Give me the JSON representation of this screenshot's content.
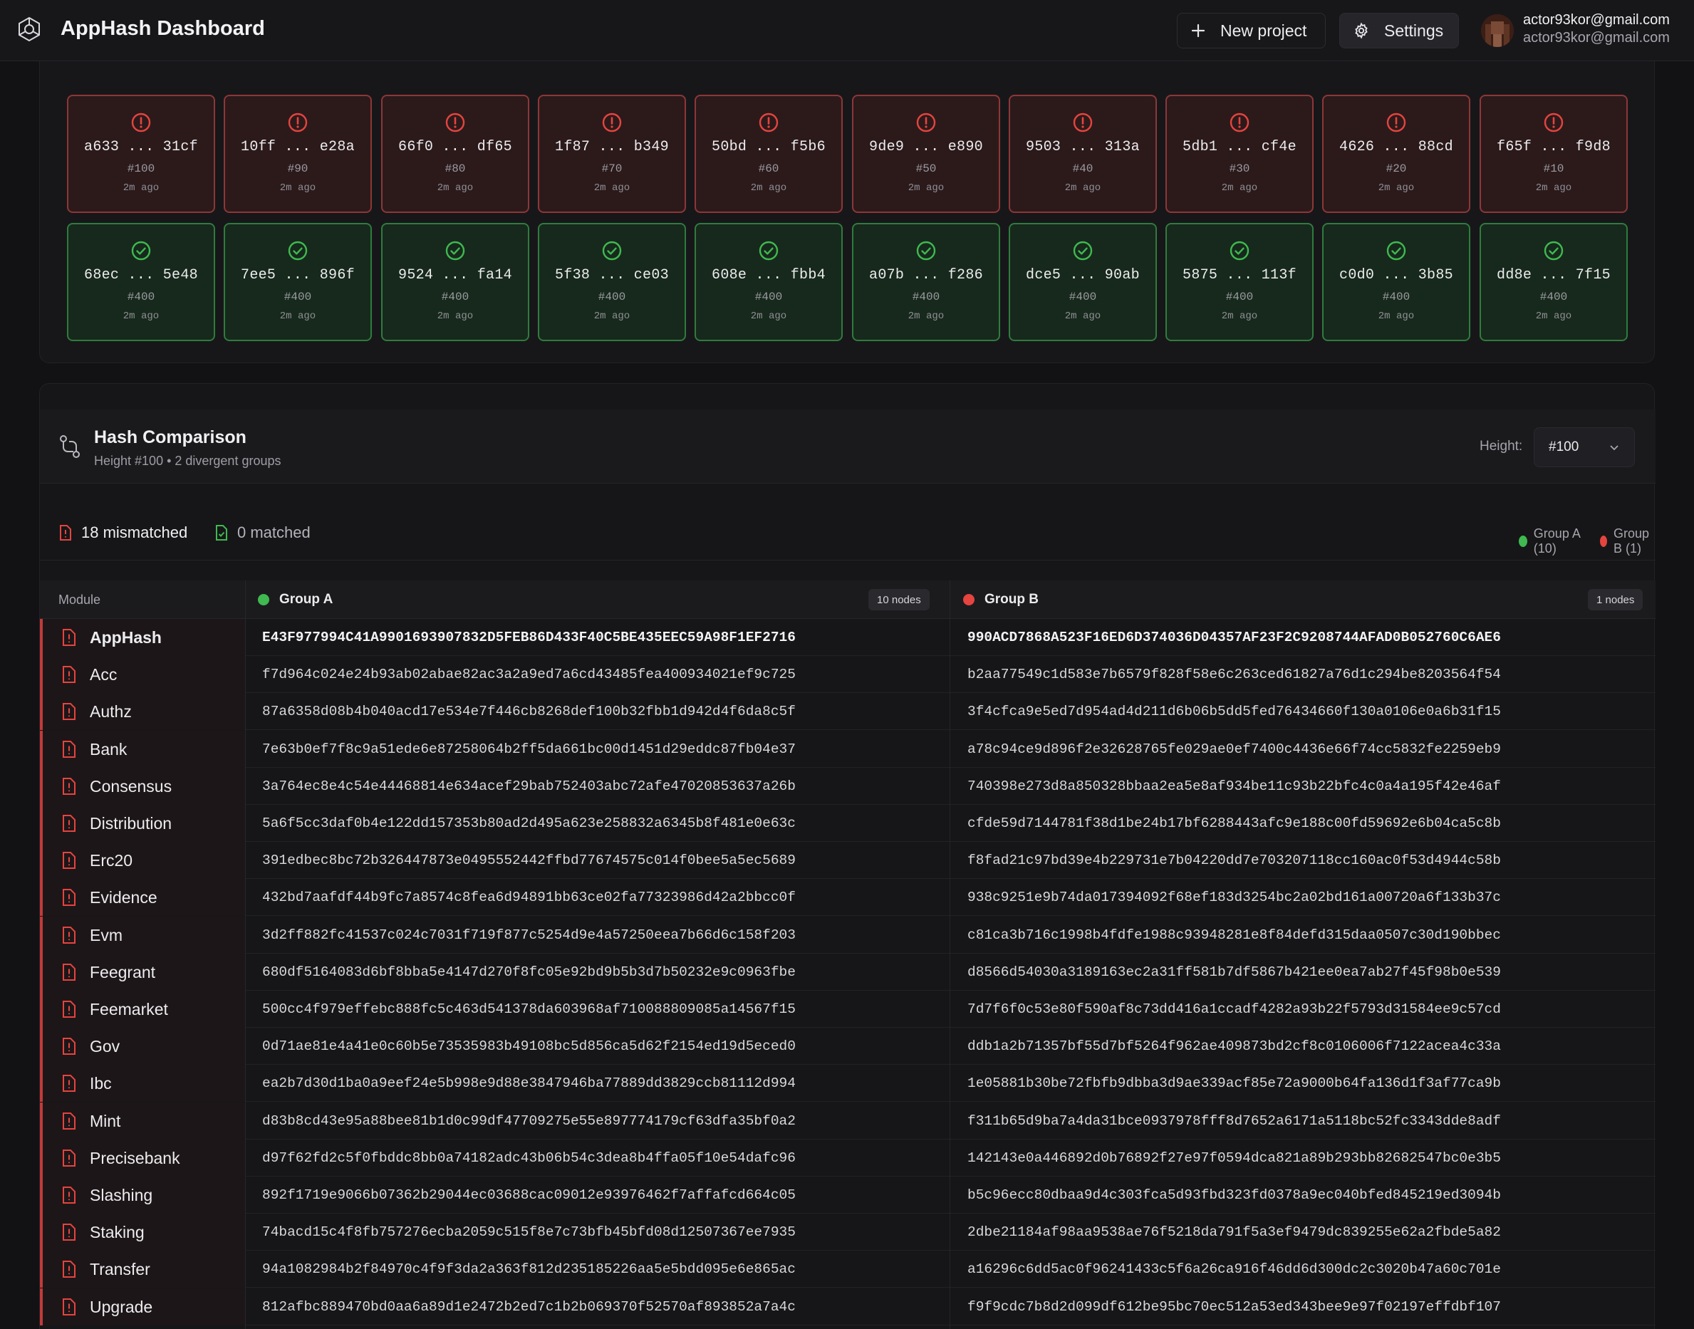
{
  "header": {
    "title": "AppHash Dashboard",
    "new_project_label": "New project",
    "settings_label": "Settings",
    "user_email": "actor93kor@gmail.com",
    "user_email_secondary": "actor93kor@gmail.com"
  },
  "blocks": {
    "failed": [
      {
        "hash": "a633 ... 31cf",
        "height": "#100",
        "age": "2m ago"
      },
      {
        "hash": "10ff ... e28a",
        "height": "#90",
        "age": "2m ago"
      },
      {
        "hash": "66f0 ... df65",
        "height": "#80",
        "age": "2m ago"
      },
      {
        "hash": "1f87 ... b349",
        "height": "#70",
        "age": "2m ago"
      },
      {
        "hash": "50bd ... f5b6",
        "height": "#60",
        "age": "2m ago"
      },
      {
        "hash": "9de9 ... e890",
        "height": "#50",
        "age": "2m ago"
      },
      {
        "hash": "9503 ... 313a",
        "height": "#40",
        "age": "2m ago"
      },
      {
        "hash": "5db1 ... cf4e",
        "height": "#30",
        "age": "2m ago"
      },
      {
        "hash": "4626 ... 88cd",
        "height": "#20",
        "age": "2m ago"
      },
      {
        "hash": "f65f ... f9d8",
        "height": "#10",
        "age": "2m ago"
      }
    ],
    "passed": [
      {
        "hash": "68ec ... 5e48",
        "height": "#400",
        "age": "2m ago"
      },
      {
        "hash": "7ee5 ... 896f",
        "height": "#400",
        "age": "2m ago"
      },
      {
        "hash": "9524 ... fa14",
        "height": "#400",
        "age": "2m ago"
      },
      {
        "hash": "5f38 ... ce03",
        "height": "#400",
        "age": "2m ago"
      },
      {
        "hash": "608e ... fbb4",
        "height": "#400",
        "age": "2m ago"
      },
      {
        "hash": "a07b ... f286",
        "height": "#400",
        "age": "2m ago"
      },
      {
        "hash": "dce5 ... 90ab",
        "height": "#400",
        "age": "2m ago"
      },
      {
        "hash": "5875 ... 113f",
        "height": "#400",
        "age": "2m ago"
      },
      {
        "hash": "c0d0 ... 3b85",
        "height": "#400",
        "age": "2m ago"
      },
      {
        "hash": "dd8e ... 7f15",
        "height": "#400",
        "age": "2m ago"
      }
    ]
  },
  "comparison": {
    "title": "Hash Comparison",
    "subtitle": "Height #100 • 2 divergent groups",
    "height_label": "Height:",
    "height_value": "#100",
    "mismatched": "18 mismatched",
    "matched": "0 matched",
    "legend_a": "Group A (10)",
    "legend_b": "Group B (1)",
    "col_module": "Module",
    "col_a": "Group A",
    "col_b": "Group B",
    "badge_a": "10 nodes",
    "badge_b": "1 nodes",
    "colors": {
      "group_a": "#3fb950",
      "group_b": "#e5443f",
      "mismatch": "#c13a3a"
    },
    "rows": [
      {
        "module": "AppHash",
        "a": "E43F977994C41A9901693907832D5FEB86D433F40C5BE435EEC59A98F1EF2716",
        "b": "990ACD7868A523F16ED6D374036D04357AF23F2C9208744AFAD0B052760C6AE6"
      },
      {
        "module": "Acc",
        "a": "f7d964c024e24b93ab02abae82ac3a2a9ed7a6cd43485fea400934021ef9c725",
        "b": "b2aa77549c1d583e7b6579f828f58e6c263ced61827a76d1c294be8203564f54"
      },
      {
        "module": "Authz",
        "a": "87a6358d08b4b040acd17e534e7f446cb8268def100b32fbb1d942d4f6da8c5f",
        "b": "3f4cfca9e5ed7d954ad4d211d6b06b5dd5fed76434660f130a0106e0a6b31f15"
      },
      {
        "module": "Bank",
        "a": "7e63b0ef7f8c9a51ede6e87258064b2ff5da661bc00d1451d29eddc87fb04e37",
        "b": "a78c94ce9d896f2e32628765fe029ae0ef7400c4436e66f74cc5832fe2259eb9"
      },
      {
        "module": "Consensus",
        "a": "3a764ec8e4c54e44468814e634acef29bab752403abc72afe47020853637a26b",
        "b": "740398e273d8a850328bbaa2ea5e8af934be11c93b22bfc4c0a4a195f42e46af"
      },
      {
        "module": "Distribution",
        "a": "5a6f5cc3daf0b4e122dd157353b80ad2d495a623e258832a6345b8f481e0e63c",
        "b": "cfde59d7144781f38d1be24b17bf6288443afc9e188c00fd59692e6b04ca5c8b"
      },
      {
        "module": "Erc20",
        "a": "391edbec8bc72b326447873e0495552442ffbd77674575c014f0bee5a5ec5689",
        "b": "f8fad21c97bd39e4b229731e7b04220dd7e703207118cc160ac0f53d4944c58b"
      },
      {
        "module": "Evidence",
        "a": "432bd7aafdf44b9fc7a8574c8fea6d94891bb63ce02fa77323986d42a2bbcc0f",
        "b": "938c9251e9b74da017394092f68ef183d3254bc2a02bd161a00720a6f133b37c"
      },
      {
        "module": "Evm",
        "a": "3d2ff882fc41537c024c7031f719f877c5254d9e4a57250eea7b66d6c158f203",
        "b": "c81ca3b716c1998b4fdfe1988c93948281e8f84defd315daa0507c30d190bbec"
      },
      {
        "module": "Feegrant",
        "a": "680df5164083d6bf8bba5e4147d270f8fc05e92bd9b5b3d7b50232e9c0963fbe",
        "b": "d8566d54030a3189163ec2a31ff581b7df5867b421ee0ea7ab27f45f98b0e539"
      },
      {
        "module": "Feemarket",
        "a": "500cc4f979effebc888fc5c463d541378da603968af710088809085a14567f15",
        "b": "7d7f6f0c53e80f590af8c73dd416a1ccadf4282a93b22f5793d31584ee9c57cd"
      },
      {
        "module": "Gov",
        "a": "0d71ae81e4a41e0c60b5e73535983b49108bc5d856ca5d62f2154ed19d5eced0",
        "b": "ddb1a2b71357bf55d7bf5264f962ae409873bd2cf8c0106006f7122acea4c33a"
      },
      {
        "module": "Ibc",
        "a": "ea2b7d30d1ba0a9eef24e5b998e9d88e3847946ba77889dd3829ccb81112d994",
        "b": "1e05881b30be72fbfb9dbba3d9ae339acf85e72a9000b64fa136d1f3af77ca9b"
      },
      {
        "module": "Mint",
        "a": "d83b8cd43e95a88bee81b1d0c99df47709275e55e897774179cf63dfa35bf0a2",
        "b": "f311b65d9ba7a4da31bce0937978fff8d7652a6171a5118bc52fc3343dde8adf"
      },
      {
        "module": "Precisebank",
        "a": "d97f62fd2c5f0fbddc8bb0a74182adc43b06b54c3dea8b4ffa05f10e54dafc96",
        "b": "142143e0a446892d0b76892f27e97f0594dca821a89b293bb82682547bc0e3b5"
      },
      {
        "module": "Slashing",
        "a": "892f1719e9066b07362b29044ec03688cac09012e93976462f7affafcd664c05",
        "b": "b5c96ecc80dbaa9d4c303fca5d93fbd323fd0378a9ec040bfed845219ed3094b"
      },
      {
        "module": "Staking",
        "a": "74bacd15c4f8fb757276ecba2059c515f8e7c73bfb45bfd08d12507367ee7935",
        "b": "2dbe21184af98aa9538ae76f5218da791f5a3ef9479dc839255e62a2fbde5a82"
      },
      {
        "module": "Transfer",
        "a": "94a1082984b2f84970c4f9f3da2a363f812d235185226aa5e5bdd095e6e865ac",
        "b": "a16296c6dd5ac0f96241433c5f6a26ca916f46dd6d300dc2c3020b47a60c701e"
      },
      {
        "module": "Upgrade",
        "a": "812afbc889470bd0aa6a89d1e2472b2ed7c1b2b069370f52570af893852a7a4c",
        "b": "f9f9cdc7b8d2d099df612be95bc70ec512a53ed343bee9e97f02197effdbf107"
      }
    ]
  }
}
